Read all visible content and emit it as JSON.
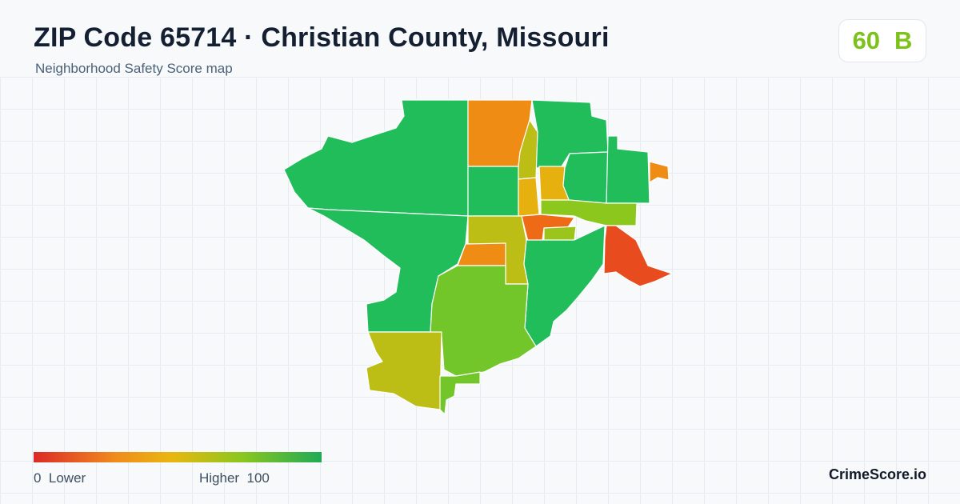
{
  "header": {
    "title": "ZIP Code 65714 · Christian County, Missouri",
    "subtitle": "Neighborhood Safety Score map"
  },
  "score": {
    "value": "60",
    "grade": "B",
    "color": "#7cc21a"
  },
  "legend": {
    "min_label": "0  Lower",
    "max_label": "Higher  100",
    "colors": [
      "#dc2a27",
      "#f08a1c",
      "#e9b70f",
      "#8cc71e",
      "#1faa55"
    ]
  },
  "brand": "CrimeScore.io",
  "map": {
    "region_colors": {
      "high": "#22bd5b",
      "medium_high": "#72c62a",
      "medium": "#bcbd15",
      "medium_low": "#e6b10f",
      "low": "#ef8c13",
      "lowest": "#e84c1e"
    }
  }
}
